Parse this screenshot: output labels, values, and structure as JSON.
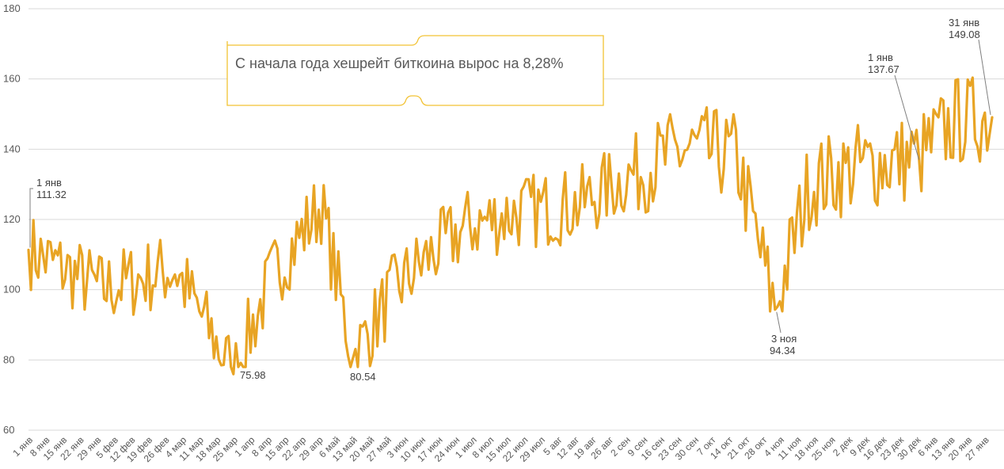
{
  "chart_data": {
    "type": "line",
    "title": "",
    "xlabel": "",
    "ylabel": "",
    "ylim": [
      60,
      180
    ],
    "yticks": [
      60,
      80,
      100,
      120,
      140,
      160,
      180
    ],
    "grid": true,
    "series_color": "#e8a424",
    "x_tick_labels": [
      "1 янв",
      "8 янв",
      "15 янв",
      "22 янв",
      "29 янв",
      "5 фев",
      "12 фев",
      "19 фев",
      "26 фев",
      "4 мар",
      "11 мар",
      "18 мар",
      "25 мар",
      "1 апр",
      "8 апр",
      "15 апр",
      "22 апр",
      "29 апр",
      "6 май",
      "13 май",
      "20 май",
      "27 май",
      "3 июн",
      "10 июн",
      "17 июн",
      "24 июн",
      "1 июл",
      "8 июл",
      "15 июл",
      "22 июл",
      "29 июл",
      "5 авг",
      "12 авг",
      "19 авг",
      "26 авг",
      "2 сен",
      "9 сен",
      "16 сен",
      "23 сен",
      "30 сен",
      "7 окт",
      "14 окт",
      "21 окт",
      "28 окт",
      "4 ноя",
      "11 ноя",
      "18 ноя",
      "25 ноя",
      "2 дек",
      "9 дек",
      "16 дек",
      "23 дек",
      "30 дек",
      "6 янв",
      "13 янв",
      "20 янв",
      "27 янв"
    ],
    "key_points": [
      {
        "day": 0,
        "value": 111.32
      },
      {
        "day": 30,
        "value": 100
      },
      {
        "day": 60,
        "value": 106
      },
      {
        "day": 84,
        "value": 75.98
      },
      {
        "day": 100,
        "value": 104
      },
      {
        "day": 120,
        "value": 124
      },
      {
        "day": 133,
        "value": 80.54
      },
      {
        "day": 150,
        "value": 100
      },
      {
        "day": 165,
        "value": 110
      },
      {
        "day": 180,
        "value": 118
      },
      {
        "day": 200,
        "value": 122
      },
      {
        "day": 225,
        "value": 124
      },
      {
        "day": 250,
        "value": 134
      },
      {
        "day": 270,
        "value": 140
      },
      {
        "day": 290,
        "value": 138
      },
      {
        "day": 306,
        "value": 94.34
      },
      {
        "day": 320,
        "value": 130
      },
      {
        "day": 340,
        "value": 135
      },
      {
        "day": 365,
        "value": 137.67
      },
      {
        "day": 380,
        "value": 148
      },
      {
        "day": 395,
        "value": 149.08
      }
    ],
    "annotations": [
      {
        "day": 0,
        "label": "1 янв",
        "value": 111.32,
        "value_label": "111.32"
      },
      {
        "day": 84,
        "label": "",
        "value": 75.98,
        "value_label": "75.98"
      },
      {
        "day": 133,
        "label": "",
        "value": 80.54,
        "value_label": "80.54"
      },
      {
        "day": 306,
        "label": "3 ноя",
        "value": 94.34,
        "value_label": "94.34"
      },
      {
        "day": 365,
        "label": "1 янв",
        "value": 137.67,
        "value_label": "137.67"
      },
      {
        "day": 395,
        "label": "31 янв",
        "value": 149.08,
        "value_label": "149.08"
      }
    ],
    "callout": {
      "text": "С начала года хешрейт биткоина вырос на 8,28%"
    }
  }
}
